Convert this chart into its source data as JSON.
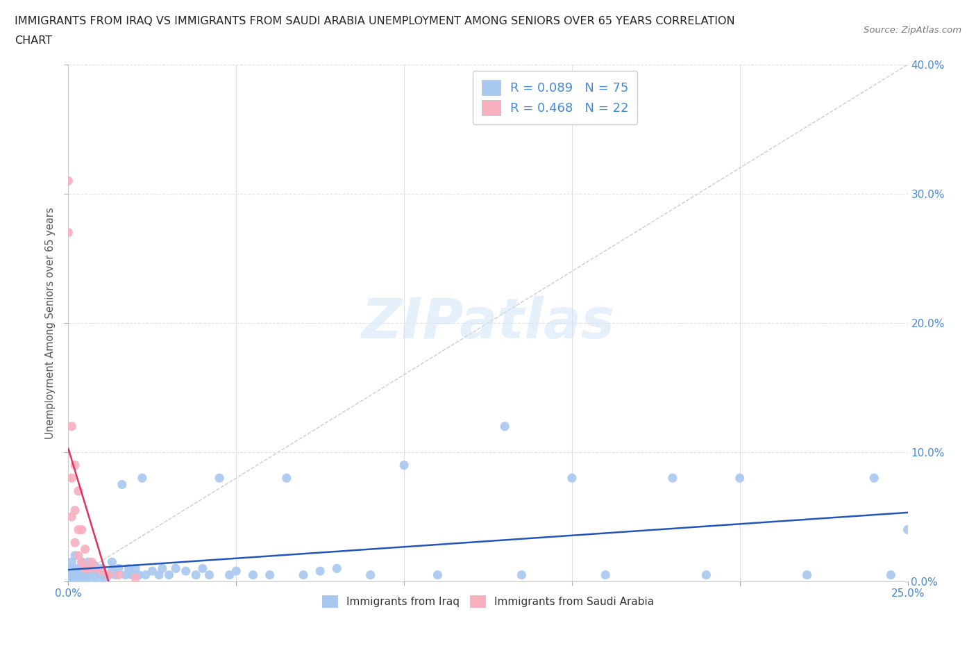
{
  "title_line1": "IMMIGRANTS FROM IRAQ VS IMMIGRANTS FROM SAUDI ARABIA UNEMPLOYMENT AMONG SENIORS OVER 65 YEARS CORRELATION",
  "title_line2": "CHART",
  "source_text": "Source: ZipAtlas.com",
  "ylabel": "Unemployment Among Seniors over 65 years",
  "xmin": 0.0,
  "xmax": 0.25,
  "ymin": 0.0,
  "ymax": 0.4,
  "iraq_color": "#a8c8f0",
  "saudi_color": "#f8b0c0",
  "iraq_line_color": "#2255bb",
  "saudi_line_color": "#e03060",
  "iraq_R": 0.089,
  "iraq_N": 75,
  "saudi_R": 0.468,
  "saudi_N": 22,
  "background_color": "#ffffff",
  "grid_color": "#e0e0e0",
  "watermark": "ZIPatlas",
  "ytick_vals": [
    0.0,
    0.1,
    0.2,
    0.3,
    0.4
  ],
  "xtick_vals": [
    0.0,
    0.05,
    0.1,
    0.15,
    0.2,
    0.25
  ],
  "iraq_x": [
    0.0,
    0.0,
    0.0,
    0.001,
    0.001,
    0.001,
    0.001,
    0.002,
    0.002,
    0.002,
    0.002,
    0.003,
    0.003,
    0.003,
    0.004,
    0.004,
    0.005,
    0.005,
    0.005,
    0.006,
    0.006,
    0.007,
    0.007,
    0.008,
    0.008,
    0.009,
    0.009,
    0.01,
    0.01,
    0.011,
    0.012,
    0.013,
    0.013,
    0.014,
    0.015,
    0.016,
    0.017,
    0.018,
    0.019,
    0.02,
    0.021,
    0.022,
    0.023,
    0.025,
    0.027,
    0.028,
    0.03,
    0.032,
    0.035,
    0.038,
    0.04,
    0.042,
    0.045,
    0.048,
    0.05,
    0.055,
    0.06,
    0.065,
    0.07,
    0.075,
    0.08,
    0.09,
    0.1,
    0.11,
    0.13,
    0.135,
    0.15,
    0.16,
    0.18,
    0.19,
    0.2,
    0.22,
    0.24,
    0.245,
    0.25
  ],
  "iraq_y": [
    0.0,
    0.005,
    0.01,
    0.0,
    0.005,
    0.008,
    0.015,
    0.0,
    0.005,
    0.01,
    0.02,
    0.0,
    0.005,
    0.01,
    0.005,
    0.015,
    0.0,
    0.005,
    0.01,
    0.005,
    0.015,
    0.0,
    0.008,
    0.005,
    0.012,
    0.0,
    0.008,
    0.005,
    0.01,
    0.003,
    0.005,
    0.008,
    0.015,
    0.005,
    0.01,
    0.075,
    0.005,
    0.01,
    0.005,
    0.01,
    0.005,
    0.08,
    0.005,
    0.008,
    0.005,
    0.01,
    0.005,
    0.01,
    0.008,
    0.005,
    0.01,
    0.005,
    0.08,
    0.005,
    0.008,
    0.005,
    0.005,
    0.08,
    0.005,
    0.008,
    0.01,
    0.005,
    0.09,
    0.005,
    0.12,
    0.005,
    0.08,
    0.005,
    0.08,
    0.005,
    0.08,
    0.005,
    0.08,
    0.005,
    0.04
  ],
  "saudi_x": [
    0.0,
    0.0,
    0.001,
    0.001,
    0.001,
    0.002,
    0.002,
    0.002,
    0.003,
    0.003,
    0.003,
    0.004,
    0.004,
    0.005,
    0.005,
    0.006,
    0.007,
    0.008,
    0.01,
    0.012,
    0.015,
    0.02
  ],
  "saudi_y": [
    0.27,
    0.31,
    0.05,
    0.08,
    0.12,
    0.03,
    0.055,
    0.09,
    0.02,
    0.04,
    0.07,
    0.015,
    0.04,
    0.01,
    0.025,
    0.01,
    0.015,
    0.01,
    0.008,
    0.005,
    0.005,
    0.003
  ]
}
